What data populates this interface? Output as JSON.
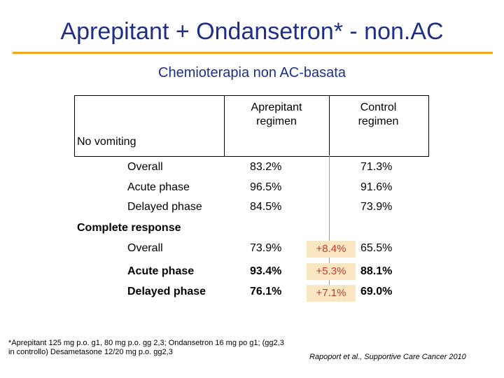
{
  "title": "Aprepitant + Ondansetron* - non.AC",
  "subtitle": "Chemioterapia non AC-basata",
  "colors": {
    "title": "#1f2f86",
    "rule": "#f5a623",
    "delta_bg": "#fbe6c4",
    "delta_text": "#c0392b"
  },
  "table": {
    "col_headers": [
      "Aprepitant regimen",
      "Control regimen"
    ],
    "col_header_lines": [
      [
        "Aprepitant",
        "regimen"
      ],
      [
        "Control",
        "regimen"
      ]
    ],
    "sections": [
      {
        "label": "No vomiting",
        "rows": [
          {
            "label": "Overall",
            "aprepitant": "83.2%",
            "control": "71.3%"
          },
          {
            "label": "Acute phase",
            "aprepitant": "96.5%",
            "control": "91.6%"
          },
          {
            "label": "Delayed phase",
            "aprepitant": "84.5%",
            "control": "73.9%"
          }
        ]
      },
      {
        "label": "Complete response",
        "rows": [
          {
            "label": "Overall",
            "aprepitant": "73.9%",
            "delta": "+8.4%",
            "control": "65.5%"
          },
          {
            "label": "Acute phase",
            "aprepitant": "93.4%",
            "delta": "+5.3%",
            "control": "88.1%"
          },
          {
            "label": "Delayed phase",
            "aprepitant": "76.1%",
            "delta": "+7.1%",
            "control": "69.0%"
          }
        ]
      }
    ]
  },
  "footnote": "*Aprepitant 125 mg p.o. g1, 80 mg p.o. gg 2,3; Ondansetron 16 mg po g1; (gg2,3 in controllo) Desametasone 12/20 mg p.o. gg2,3",
  "citation": "Rapoport et al., Supportive Care Cancer 2010"
}
